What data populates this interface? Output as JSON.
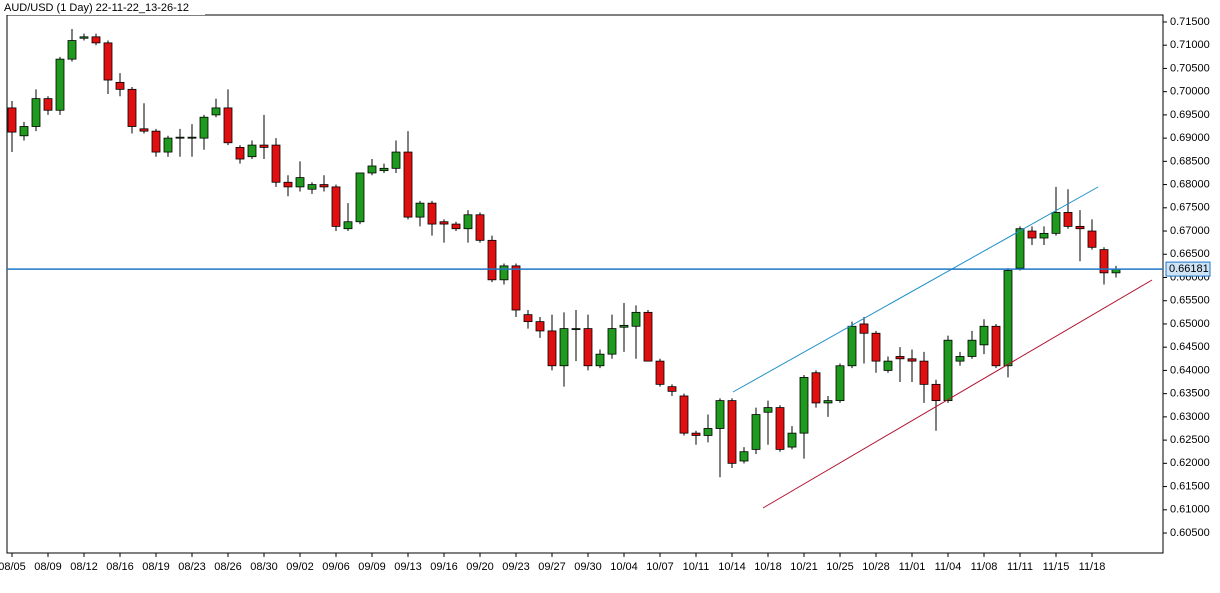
{
  "chart_data": {
    "type": "candlestick",
    "title": "AUD/USD (1 Day) 22-11-22_13-26-12",
    "categories": [
      "08/05",
      null,
      null,
      "08/09",
      null,
      null,
      "08/12",
      null,
      null,
      "08/16",
      null,
      null,
      "08/19",
      null,
      null,
      "08/23",
      null,
      null,
      "08/26",
      null,
      null,
      "08/30",
      null,
      null,
      "09/02",
      null,
      null,
      "09/06",
      null,
      null,
      "09/09",
      null,
      null,
      "09/13",
      null,
      null,
      "09/16",
      null,
      null,
      "09/20",
      null,
      null,
      "09/23",
      null,
      null,
      "09/27",
      null,
      null,
      "09/30",
      null,
      null,
      "10/04",
      null,
      null,
      "10/07",
      null,
      null,
      "10/11",
      null,
      null,
      "10/14",
      null,
      null,
      "10/18",
      null,
      null,
      "10/21",
      null,
      null,
      "10/25",
      null,
      null,
      "10/28",
      null,
      null,
      "11/01",
      null,
      null,
      "11/04",
      null,
      null,
      "11/08",
      null,
      null,
      "11/11",
      null,
      null,
      "11/15",
      null,
      null,
      "11/18",
      null,
      null
    ],
    "open": [
      0.6965,
      0.6905,
      0.6925,
      0.6985,
      0.696,
      0.707,
      0.7115,
      0.7118,
      0.7105,
      0.702,
      0.7005,
      0.692,
      0.6915,
      0.687,
      0.69,
      0.69,
      0.69,
      0.695,
      0.6965,
      0.688,
      0.686,
      0.6885,
      0.6885,
      0.6805,
      0.6795,
      0.679,
      0.68,
      0.6795,
      0.6705,
      0.672,
      0.6825,
      0.683,
      0.6835,
      0.687,
      0.673,
      0.676,
      0.672,
      0.6715,
      0.6705,
      0.6735,
      0.668,
      0.6595,
      0.6625,
      0.652,
      0.6505,
      0.6485,
      0.641,
      0.6488,
      0.649,
      0.641,
      0.6435,
      0.6493,
      0.6495,
      0.6525,
      0.642,
      0.6365,
      0.6345,
      0.6265,
      0.626,
      0.6275,
      0.6335,
      0.6205,
      0.623,
      0.631,
      0.632,
      0.6235,
      0.6265,
      0.6395,
      0.633,
      0.6335,
      0.641,
      0.65,
      0.648,
      0.64,
      0.643,
      0.6425,
      0.642,
      0.637,
      0.6335,
      0.642,
      0.643,
      0.6455,
      0.6495,
      0.641,
      0.662,
      0.67,
      0.6685,
      0.6695,
      0.674,
      0.671,
      0.67,
      0.666,
      0.661
    ],
    "high": [
      0.698,
      0.6935,
      0.7005,
      0.699,
      0.7075,
      0.7135,
      0.7125,
      0.7125,
      0.711,
      0.704,
      0.701,
      0.6975,
      0.692,
      0.6905,
      0.692,
      0.693,
      0.695,
      0.6985,
      0.7005,
      0.6885,
      0.6895,
      0.695,
      0.69,
      0.682,
      0.685,
      0.6805,
      0.682,
      0.68,
      0.676,
      0.6825,
      0.6855,
      0.6845,
      0.6895,
      0.6915,
      0.6765,
      0.6765,
      0.6725,
      0.672,
      0.6745,
      0.674,
      0.669,
      0.663,
      0.663,
      0.653,
      0.6515,
      0.652,
      0.6525,
      0.653,
      0.652,
      0.6445,
      0.652,
      0.6545,
      0.654,
      0.653,
      0.6425,
      0.637,
      0.635,
      0.627,
      0.6305,
      0.634,
      0.634,
      0.6235,
      0.632,
      0.6335,
      0.6325,
      0.628,
      0.639,
      0.64,
      0.6345,
      0.6415,
      0.6505,
      0.6515,
      0.6485,
      0.643,
      0.645,
      0.6445,
      0.644,
      0.638,
      0.6475,
      0.644,
      0.6485,
      0.651,
      0.65,
      0.662,
      0.671,
      0.671,
      0.671,
      0.6795,
      0.679,
      0.6745,
      0.6725,
      0.6665,
      0.6625
    ],
    "low": [
      0.687,
      0.6895,
      0.6915,
      0.695,
      0.695,
      0.7065,
      0.711,
      0.71,
      0.6995,
      0.699,
      0.691,
      0.691,
      0.686,
      0.686,
      0.686,
      0.686,
      0.6875,
      0.6945,
      0.6885,
      0.6845,
      0.6855,
      0.6855,
      0.6795,
      0.6775,
      0.6785,
      0.678,
      0.6785,
      0.67,
      0.67,
      0.6715,
      0.682,
      0.6825,
      0.6825,
      0.6725,
      0.671,
      0.669,
      0.6675,
      0.67,
      0.6675,
      0.6675,
      0.659,
      0.6585,
      0.6515,
      0.649,
      0.647,
      0.64,
      0.6365,
      0.642,
      0.64,
      0.6405,
      0.6425,
      0.644,
      0.6425,
      0.642,
      0.6365,
      0.6345,
      0.626,
      0.624,
      0.6245,
      0.617,
      0.619,
      0.62,
      0.622,
      0.624,
      0.6225,
      0.623,
      0.621,
      0.632,
      0.63,
      0.633,
      0.6405,
      0.6415,
      0.6395,
      0.6395,
      0.6375,
      0.6375,
      0.633,
      0.627,
      0.633,
      0.641,
      0.6425,
      0.6435,
      0.6405,
      0.6385,
      0.6615,
      0.667,
      0.667,
      0.669,
      0.6705,
      0.6635,
      0.666,
      0.6585,
      0.66
    ],
    "close": [
      0.6913,
      0.6925,
      0.6985,
      0.696,
      0.707,
      0.711,
      0.7118,
      0.7105,
      0.7025,
      0.7005,
      0.6925,
      0.6915,
      0.687,
      0.69,
      0.6902,
      0.6902,
      0.6945,
      0.6965,
      0.689,
      0.6855,
      0.6885,
      0.688,
      0.6805,
      0.6795,
      0.6815,
      0.68,
      0.6795,
      0.671,
      0.672,
      0.6825,
      0.684,
      0.6835,
      0.687,
      0.673,
      0.676,
      0.6715,
      0.6715,
      0.6705,
      0.6735,
      0.668,
      0.6595,
      0.6625,
      0.653,
      0.6505,
      0.6485,
      0.641,
      0.649,
      0.649,
      0.641,
      0.6435,
      0.649,
      0.6497,
      0.6525,
      0.642,
      0.637,
      0.6355,
      0.6265,
      0.626,
      0.6275,
      0.6335,
      0.62,
      0.6225,
      0.6305,
      0.632,
      0.623,
      0.6265,
      0.6385,
      0.633,
      0.6335,
      0.641,
      0.6495,
      0.648,
      0.642,
      0.642,
      0.6425,
      0.642,
      0.637,
      0.6335,
      0.6465,
      0.643,
      0.6465,
      0.6495,
      0.641,
      0.6615,
      0.6705,
      0.6685,
      0.6695,
      0.674,
      0.671,
      0.6705,
      0.6665,
      0.661,
      0.6618
    ],
    "up_color": "#1f9a1f",
    "down_color": "#e01010",
    "current_price": 0.66181,
    "ylim": [
      0.6007,
      0.7165
    ],
    "yticks": [
      {
        "value": 0.605,
        "label": "0.60500"
      },
      {
        "value": 0.61,
        "label": "0.61000"
      },
      {
        "value": 0.615,
        "label": "0.61500"
      },
      {
        "value": 0.62,
        "label": "0.62000"
      },
      {
        "value": 0.625,
        "label": "0.62500"
      },
      {
        "value": 0.63,
        "label": "0.63000"
      },
      {
        "value": 0.635,
        "label": "0.63500"
      },
      {
        "value": 0.64,
        "label": "0.64000"
      },
      {
        "value": 0.645,
        "label": "0.64500"
      },
      {
        "value": 0.65,
        "label": "0.65000"
      },
      {
        "value": 0.655,
        "label": "0.65500"
      },
      {
        "value": 0.66,
        "label": "0.66000"
      },
      {
        "value": 0.665,
        "label": "0.66500"
      },
      {
        "value": 0.67,
        "label": "0.67000"
      },
      {
        "value": 0.675,
        "label": "0.67500"
      },
      {
        "value": 0.68,
        "label": "0.68000"
      },
      {
        "value": 0.685,
        "label": "0.68500"
      },
      {
        "value": 0.69,
        "label": "0.69000"
      },
      {
        "value": 0.695,
        "label": "0.69500"
      },
      {
        "value": 0.7,
        "label": "0.70000"
      },
      {
        "value": 0.705,
        "label": "0.70500"
      },
      {
        "value": 0.71,
        "label": "0.71000"
      },
      {
        "value": 0.715,
        "label": "0.71500"
      }
    ]
  }
}
